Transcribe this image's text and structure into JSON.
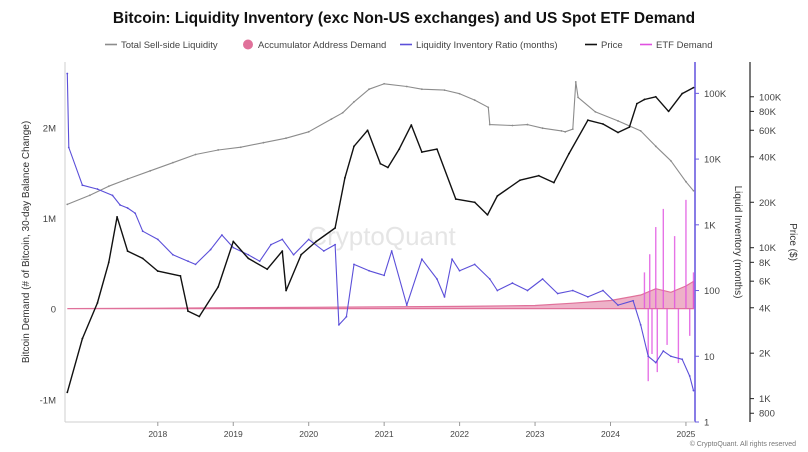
{
  "chart_data": {
    "type": "line",
    "title": "Bitcoin: Liquidity Inventory (exc Non-US exchanges) and US Spot ETF Demand",
    "watermark": "CryptoQuant",
    "footer": "© CryptoQuant. All rights reserved",
    "y_left_label": "Bitcoin Demand (# of Bitcoin, 30-day Balance Change)",
    "y_mid_label": "Liquid Inventory (months)",
    "y_right_label": "Price ($)",
    "x_ticks": [
      "2018",
      "2019",
      "2020",
      "2021",
      "2022",
      "2023",
      "2024",
      "2025"
    ],
    "x_range": [
      2017.27,
      2025.62
    ],
    "y_left_ticks": [
      "2M",
      "1M",
      "0",
      "-1M"
    ],
    "y_left_tick_values": [
      2000000,
      1000000,
      0,
      -1000000
    ],
    "y_left_range": [
      -1250000,
      2720000
    ],
    "y_mid_ticks": [
      "100K",
      "10K",
      "1K",
      "100",
      "10",
      "1"
    ],
    "y_mid_tick_values": [
      100000,
      10000,
      1000,
      100,
      10,
      1
    ],
    "y_mid_range": [
      1,
      300000
    ],
    "y_right_ticks": [
      "100K",
      "80K",
      "60K",
      "40K",
      "20K",
      "10K",
      "8K",
      "6K",
      "4K",
      "2K",
      "1K",
      "800"
    ],
    "y_right_tick_values": [
      100000,
      80000,
      60000,
      40000,
      20000,
      10000,
      8000,
      6000,
      4000,
      2000,
      1000,
      800
    ],
    "y_right_range": [
      700,
      170000
    ],
    "legend_position": "top",
    "series": [
      {
        "name": "Total Sell-side Liquidity",
        "color": "#8c8c8c",
        "axis": "left",
        "points": [
          [
            2017.3,
            1150000
          ],
          [
            2017.6,
            1250000
          ],
          [
            2017.85,
            1350000
          ],
          [
            2018.1,
            1430000
          ],
          [
            2018.4,
            1520000
          ],
          [
            2018.7,
            1610000
          ],
          [
            2019.0,
            1700000
          ],
          [
            2019.3,
            1750000
          ],
          [
            2019.6,
            1780000
          ],
          [
            2019.9,
            1830000
          ],
          [
            2020.2,
            1880000
          ],
          [
            2020.5,
            1950000
          ],
          [
            2020.8,
            2090000
          ],
          [
            2020.95,
            2160000
          ],
          [
            2021.1,
            2280000
          ],
          [
            2021.3,
            2420000
          ],
          [
            2021.5,
            2480000
          ],
          [
            2021.8,
            2450000
          ],
          [
            2022.0,
            2420000
          ],
          [
            2022.3,
            2410000
          ],
          [
            2022.5,
            2370000
          ],
          [
            2022.7,
            2300000
          ],
          [
            2022.88,
            2220000
          ],
          [
            2022.9,
            2030000
          ],
          [
            2023.2,
            2020000
          ],
          [
            2023.4,
            2030000
          ],
          [
            2023.6,
            1990000
          ],
          [
            2023.85,
            1960000
          ],
          [
            2023.9,
            1950000
          ],
          [
            2024.0,
            1980000
          ],
          [
            2024.04,
            2500000
          ],
          [
            2024.07,
            2330000
          ],
          [
            2024.3,
            2170000
          ],
          [
            2024.6,
            2070000
          ],
          [
            2024.9,
            1960000
          ],
          [
            2025.1,
            1790000
          ],
          [
            2025.3,
            1630000
          ],
          [
            2025.5,
            1400000
          ],
          [
            2025.6,
            1300000
          ]
        ]
      },
      {
        "name": "Accumulator Address Demand",
        "color": "#e0719a",
        "axis": "left",
        "points": [
          [
            2017.3,
            0
          ],
          [
            2018.5,
            5000
          ],
          [
            2019.5,
            10000
          ],
          [
            2020.5,
            15000
          ],
          [
            2021.5,
            20000
          ],
          [
            2022.5,
            25000
          ],
          [
            2023.5,
            35000
          ],
          [
            2024.0,
            60000
          ],
          [
            2024.5,
            90000
          ],
          [
            2024.9,
            150000
          ],
          [
            2025.1,
            220000
          ],
          [
            2025.3,
            180000
          ],
          [
            2025.5,
            250000
          ],
          [
            2025.6,
            300000
          ]
        ]
      },
      {
        "name": "Liquidity Inventory Ratio (months)",
        "color": "#5b4fd9",
        "axis": "middle",
        "points": [
          [
            2017.3,
            200000
          ],
          [
            2017.32,
            15000
          ],
          [
            2017.5,
            4000
          ],
          [
            2017.7,
            3500
          ],
          [
            2017.9,
            2800
          ],
          [
            2018.0,
            2000
          ],
          [
            2018.1,
            1800
          ],
          [
            2018.2,
            1500
          ],
          [
            2018.3,
            800
          ],
          [
            2018.5,
            600
          ],
          [
            2018.7,
            350
          ],
          [
            2018.9,
            280
          ],
          [
            2019.0,
            250
          ],
          [
            2019.2,
            420
          ],
          [
            2019.35,
            700
          ],
          [
            2019.5,
            450
          ],
          [
            2019.7,
            350
          ],
          [
            2019.85,
            280
          ],
          [
            2020.0,
            500
          ],
          [
            2020.15,
            600
          ],
          [
            2020.3,
            350
          ],
          [
            2020.5,
            600
          ],
          [
            2020.7,
            400
          ],
          [
            2020.85,
            500
          ],
          [
            2020.9,
            30
          ],
          [
            2021.0,
            40
          ],
          [
            2021.1,
            250
          ],
          [
            2021.3,
            200
          ],
          [
            2021.5,
            170
          ],
          [
            2021.6,
            400
          ],
          [
            2021.8,
            60
          ],
          [
            2022.0,
            300
          ],
          [
            2022.2,
            150
          ],
          [
            2022.3,
            80
          ],
          [
            2022.4,
            300
          ],
          [
            2022.5,
            200
          ],
          [
            2022.7,
            250
          ],
          [
            2022.9,
            150
          ],
          [
            2023.0,
            100
          ],
          [
            2023.2,
            130
          ],
          [
            2023.4,
            100
          ],
          [
            2023.6,
            150
          ],
          [
            2023.8,
            90
          ],
          [
            2024.0,
            100
          ],
          [
            2024.2,
            80
          ],
          [
            2024.4,
            100
          ],
          [
            2024.6,
            60
          ],
          [
            2024.8,
            70
          ],
          [
            2024.9,
            30
          ],
          [
            2025.0,
            10
          ],
          [
            2025.1,
            8
          ],
          [
            2025.2,
            12
          ],
          [
            2025.3,
            10
          ],
          [
            2025.45,
            9
          ],
          [
            2025.55,
            5
          ],
          [
            2025.6,
            3
          ]
        ]
      },
      {
        "name": "Price",
        "color": "#111111",
        "axis": "right",
        "points": [
          [
            2017.3,
            1100
          ],
          [
            2017.5,
            2500
          ],
          [
            2017.7,
            4300
          ],
          [
            2017.85,
            8000
          ],
          [
            2017.96,
            16000
          ],
          [
            2018.1,
            9500
          ],
          [
            2018.3,
            8500
          ],
          [
            2018.5,
            7000
          ],
          [
            2018.8,
            6500
          ],
          [
            2018.9,
            3800
          ],
          [
            2019.05,
            3500
          ],
          [
            2019.3,
            5500
          ],
          [
            2019.5,
            11000
          ],
          [
            2019.7,
            8500
          ],
          [
            2019.95,
            7200
          ],
          [
            2020.15,
            9500
          ],
          [
            2020.2,
            5200
          ],
          [
            2020.4,
            9000
          ],
          [
            2020.6,
            11000
          ],
          [
            2020.85,
            13500
          ],
          [
            2020.98,
            29000
          ],
          [
            2021.1,
            47000
          ],
          [
            2021.28,
            60000
          ],
          [
            2021.45,
            36000
          ],
          [
            2021.55,
            34000
          ],
          [
            2021.7,
            45000
          ],
          [
            2021.86,
            65000
          ],
          [
            2022.0,
            43000
          ],
          [
            2022.2,
            45000
          ],
          [
            2022.45,
            21000
          ],
          [
            2022.7,
            20000
          ],
          [
            2022.87,
            16500
          ],
          [
            2023.0,
            22000
          ],
          [
            2023.3,
            28000
          ],
          [
            2023.55,
            30000
          ],
          [
            2023.75,
            27000
          ],
          [
            2023.95,
            42000
          ],
          [
            2024.2,
            70000
          ],
          [
            2024.4,
            66000
          ],
          [
            2024.6,
            58000
          ],
          [
            2024.75,
            63000
          ],
          [
            2024.85,
            90000
          ],
          [
            2024.95,
            96000
          ],
          [
            2025.1,
            100000
          ],
          [
            2025.27,
            80000
          ],
          [
            2025.45,
            105000
          ],
          [
            2025.6,
            115000
          ]
        ]
      },
      {
        "name": "ETF Demand",
        "color": "#e050e0",
        "axis": "left",
        "points": [
          [
            2024.0,
            0
          ],
          [
            2024.9,
            0
          ],
          [
            2024.95,
            400000
          ],
          [
            2025.0,
            -800000
          ],
          [
            2025.02,
            600000
          ],
          [
            2025.05,
            -500000
          ],
          [
            2025.1,
            900000
          ],
          [
            2025.12,
            -700000
          ],
          [
            2025.2,
            1100000
          ],
          [
            2025.25,
            -400000
          ],
          [
            2025.35,
            800000
          ],
          [
            2025.4,
            -600000
          ],
          [
            2025.5,
            1200000
          ],
          [
            2025.55,
            -300000
          ],
          [
            2025.6,
            400000
          ]
        ]
      }
    ]
  }
}
